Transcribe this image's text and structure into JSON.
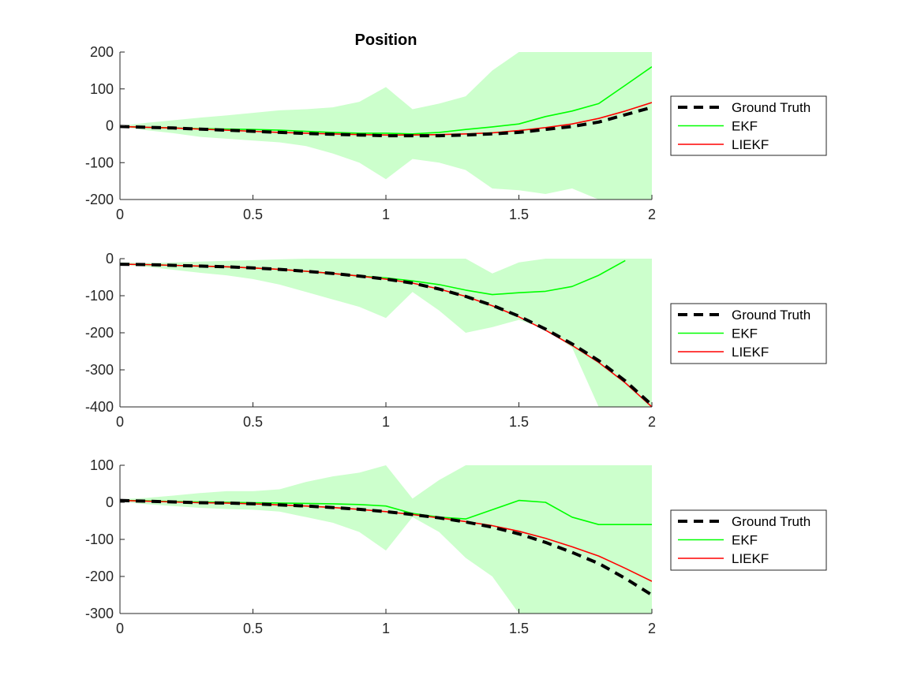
{
  "figure": {
    "title": "Position",
    "legend": [
      {
        "label": "Ground Truth",
        "color": "#000000",
        "dashed": true
      },
      {
        "label": "EKF",
        "color": "#00ff00",
        "dashed": false
      },
      {
        "label": "LIEKF",
        "color": "#ff0000",
        "dashed": false
      }
    ],
    "band_color": "#ccffcc",
    "ekf_color": "#00ff00",
    "liekf_color": "#ff0000",
    "truth_color": "#000000"
  },
  "chart_data": [
    {
      "type": "line",
      "title": "Position",
      "xlabel": "",
      "ylabel": "",
      "xlim": [
        0,
        2
      ],
      "ylim": [
        -200,
        200
      ],
      "xticks": [
        0,
        0.5,
        1,
        1.5,
        2
      ],
      "xtick_labels": [
        "0",
        "0.5",
        "1",
        "1.5",
        "2"
      ],
      "yticks": [
        -200,
        -100,
        0,
        100,
        200
      ],
      "ytick_labels": [
        "-200",
        "-100",
        "0",
        "100",
        "200"
      ],
      "grid": false,
      "legend_position": "right",
      "x": [
        0,
        0.1,
        0.2,
        0.3,
        0.4,
        0.5,
        0.6,
        0.7,
        0.8,
        0.9,
        1.0,
        1.1,
        1.2,
        1.3,
        1.4,
        1.5,
        1.6,
        1.7,
        1.8,
        1.9,
        2.0
      ],
      "series": [
        {
          "name": "Ground Truth",
          "values": [
            -2,
            -4,
            -6,
            -9,
            -12,
            -15,
            -18,
            -21,
            -23,
            -25,
            -27,
            -27,
            -27,
            -25,
            -22,
            -18,
            -10,
            -2,
            10,
            30,
            50
          ]
        },
        {
          "name": "EKF",
          "values": [
            -2,
            -4,
            -6,
            -8,
            -9,
            -10,
            -12,
            -15,
            -18,
            -20,
            -20,
            -22,
            -18,
            -10,
            -3,
            5,
            25,
            40,
            60,
            110,
            160
          ]
        },
        {
          "name": "LIEKF",
          "values": [
            -2,
            -4,
            -6,
            -9,
            -12,
            -15,
            -18,
            -20,
            -22,
            -24,
            -25,
            -25,
            -24,
            -22,
            -19,
            -13,
            -5,
            5,
            20,
            40,
            63
          ]
        }
      ],
      "band": {
        "upper": [
          0,
          8,
          15,
          22,
          28,
          35,
          42,
          45,
          50,
          65,
          105,
          45,
          60,
          80,
          150,
          200,
          200,
          200,
          200,
          200,
          200
        ],
        "lower": [
          -2,
          -12,
          -20,
          -30,
          -35,
          -40,
          -45,
          -55,
          -75,
          -100,
          -145,
          -90,
          -100,
          -120,
          -170,
          -175,
          -185,
          -170,
          -200,
          -200,
          -200
        ]
      }
    },
    {
      "type": "line",
      "title": "",
      "xlabel": "",
      "ylabel": "",
      "xlim": [
        0,
        2
      ],
      "ylim": [
        -400,
        0
      ],
      "xticks": [
        0,
        0.5,
        1,
        1.5,
        2
      ],
      "xtick_labels": [
        "0",
        "0.5",
        "1",
        "1.5",
        "2"
      ],
      "yticks": [
        -400,
        -300,
        -200,
        -100,
        0
      ],
      "ytick_labels": [
        "-400",
        "-300",
        "-200",
        "-100",
        "0"
      ],
      "grid": false,
      "legend_position": "right",
      "x": [
        0,
        0.1,
        0.2,
        0.3,
        0.4,
        0.5,
        0.6,
        0.7,
        0.8,
        0.9,
        1.0,
        1.1,
        1.2,
        1.3,
        1.4,
        1.5,
        1.6,
        1.7,
        1.8,
        1.9,
        2.0
      ],
      "series": [
        {
          "name": "Ground Truth",
          "values": [
            -15,
            -16,
            -18,
            -20,
            -22,
            -25,
            -29,
            -34,
            -40,
            -47,
            -55,
            -66,
            -82,
            -102,
            -126,
            -155,
            -190,
            -230,
            -275,
            -330,
            -395
          ]
        },
        {
          "name": "EKF",
          "values": [
            -15,
            -16,
            -18,
            -20,
            -22,
            -25,
            -29,
            -34,
            -40,
            -47,
            -52,
            -60,
            -70,
            -85,
            -97,
            -92,
            -88,
            -75,
            -45,
            -5,
            null
          ]
        },
        {
          "name": "LIEKF",
          "values": [
            -15,
            -16,
            -18,
            -20,
            -22,
            -25,
            -29,
            -34,
            -40,
            -47,
            -55,
            -66,
            -82,
            -102,
            -127,
            -157,
            -193,
            -234,
            -280,
            -335,
            -400
          ]
        }
      ],
      "band": {
        "upper": [
          -10,
          -12,
          -10,
          -8,
          -6,
          -4,
          -2,
          0,
          0,
          0,
          0,
          0,
          0,
          0,
          -40,
          -10,
          0,
          0,
          0,
          0,
          0
        ],
        "lower": [
          -15,
          -22,
          -30,
          -38,
          -45,
          -55,
          -70,
          -90,
          -110,
          -130,
          -160,
          -90,
          -140,
          -200,
          -185,
          -165,
          -190,
          -240,
          -400,
          -400,
          -400
        ]
      }
    },
    {
      "type": "line",
      "title": "",
      "xlabel": "",
      "ylabel": "",
      "xlim": [
        0,
        2
      ],
      "ylim": [
        -300,
        100
      ],
      "xticks": [
        0,
        0.5,
        1,
        1.5,
        2
      ],
      "xtick_labels": [
        "0",
        "0.5",
        "1",
        "1.5",
        "2"
      ],
      "yticks": [
        -300,
        -200,
        -100,
        0,
        100
      ],
      "ytick_labels": [
        "-300",
        "-200",
        "-100",
        "0",
        "100"
      ],
      "grid": false,
      "legend_position": "right",
      "x": [
        0,
        0.1,
        0.2,
        0.3,
        0.4,
        0.5,
        0.6,
        0.7,
        0.8,
        0.9,
        1.0,
        1.1,
        1.2,
        1.3,
        1.4,
        1.5,
        1.6,
        1.7,
        1.8,
        1.9,
        2.0
      ],
      "series": [
        {
          "name": "Ground Truth",
          "values": [
            5,
            3,
            1,
            -1,
            -2,
            -4,
            -7,
            -10,
            -14,
            -19,
            -25,
            -33,
            -42,
            -53,
            -67,
            -85,
            -108,
            -135,
            -165,
            -205,
            -250
          ]
        },
        {
          "name": "EKF",
          "values": [
            5,
            4,
            2,
            1,
            0,
            -1,
            -2,
            -3,
            -4,
            -6,
            -10,
            -30,
            -40,
            -45,
            -20,
            5,
            0,
            -40,
            -60,
            -60,
            -60
          ]
        },
        {
          "name": "LIEKF",
          "values": [
            5,
            3,
            1,
            -1,
            -2,
            -4,
            -7,
            -10,
            -14,
            -19,
            -25,
            -33,
            -42,
            -52,
            -63,
            -78,
            -97,
            -120,
            -145,
            -178,
            -213
          ]
        }
      ],
      "band": {
        "upper": [
          8,
          12,
          18,
          25,
          30,
          30,
          35,
          55,
          70,
          80,
          100,
          10,
          60,
          100,
          100,
          100,
          100,
          100,
          100,
          100,
          100
        ],
        "lower": [
          2,
          -5,
          -10,
          -15,
          -18,
          -20,
          -25,
          -40,
          -55,
          -80,
          -130,
          -40,
          -80,
          -150,
          -200,
          -300,
          -300,
          -300,
          -300,
          -300,
          -300
        ]
      }
    }
  ]
}
